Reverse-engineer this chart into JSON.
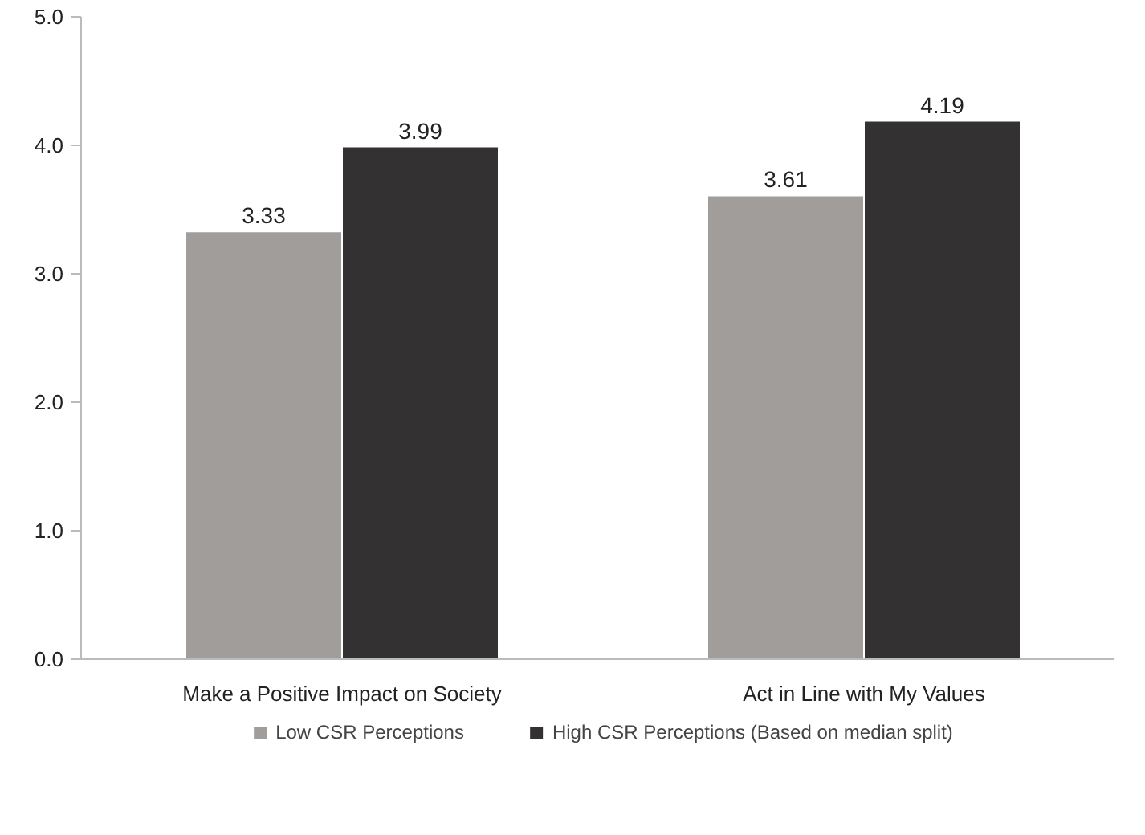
{
  "chart_data": {
    "type": "bar",
    "categories": [
      "Make a Positive Impact on Society",
      "Act in Line with My Values"
    ],
    "series": [
      {
        "name": "Low CSR Perceptions",
        "color": "#a09d9a",
        "values": [
          3.33,
          3.61
        ]
      },
      {
        "name": "High CSR Perceptions (Based on median split)",
        "color": "#333132",
        "values": [
          3.99,
          4.19
        ]
      }
    ],
    "ylim": [
      0,
      5
    ],
    "yticks": [
      {
        "value": 0,
        "label": "0.0"
      },
      {
        "value": 1,
        "label": "1.0"
      },
      {
        "value": 2,
        "label": "2.0"
      },
      {
        "value": 3,
        "label": "3.0"
      },
      {
        "value": 4,
        "label": "4.0"
      },
      {
        "value": 5,
        "label": "5.0"
      }
    ],
    "grid": false,
    "legend": "bottom",
    "data_labels": true
  }
}
